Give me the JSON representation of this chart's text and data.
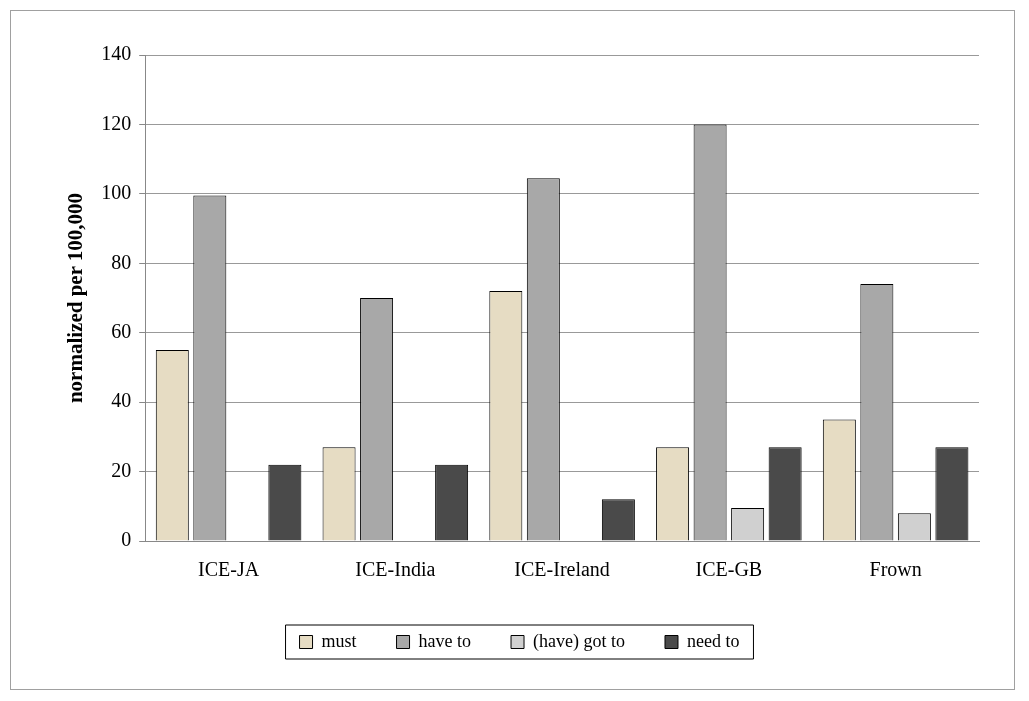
{
  "chart_data": {
    "type": "bar",
    "ylabel": "normalized per 100,000",
    "categories": [
      "ICE-JA",
      "ICE-India",
      "ICE-Ireland",
      "ICE-GB",
      "Frown"
    ],
    "series": [
      {
        "name": "must",
        "color": "#e6dcc3",
        "values": [
          55,
          27,
          72,
          27,
          35
        ]
      },
      {
        "name": "have to",
        "color": "#a8a8a8",
        "values": [
          99.5,
          70,
          104.5,
          120,
          74
        ]
      },
      {
        "name": "(have) got to",
        "color": "#d0d0d0",
        "values": [
          0,
          0,
          0,
          9.5,
          8
        ]
      },
      {
        "name": "need to",
        "color": "#4a4a4a",
        "values": [
          22,
          22,
          12,
          27,
          27
        ]
      }
    ],
    "ylim": [
      0,
      140
    ],
    "yticks": [
      0,
      20,
      40,
      60,
      80,
      100,
      120,
      140
    ],
    "grid": "y",
    "legend": "bottom"
  }
}
